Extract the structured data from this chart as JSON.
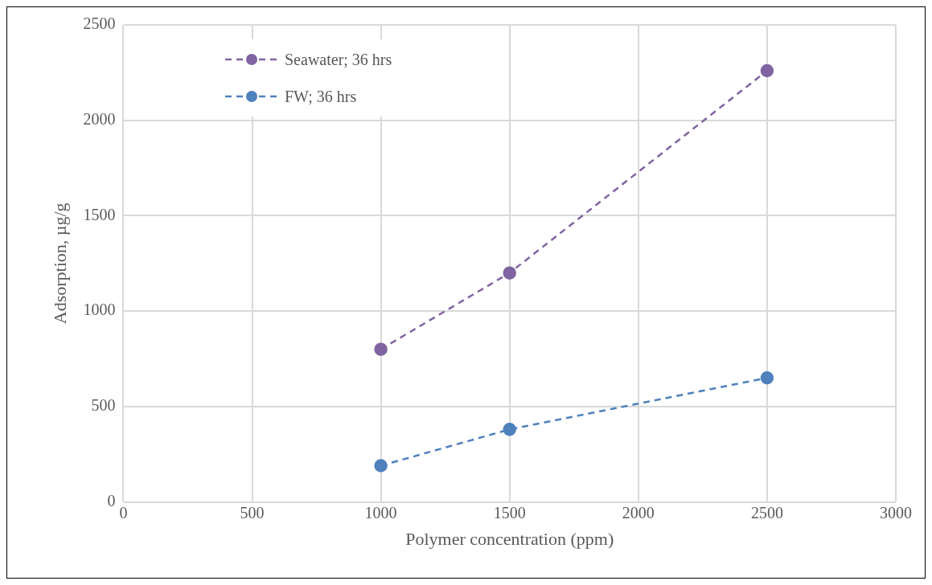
{
  "chart_data": {
    "type": "line",
    "xlabel": "Polymer concentration (ppm)",
    "ylabel": "Adsorption, µg/g",
    "x": [
      1000,
      1500,
      2500
    ],
    "series": [
      {
        "name": "Seawater; 36 hrs",
        "color": "#8064a2",
        "values": [
          800,
          1200,
          2260
        ]
      },
      {
        "name": "FW; 36 hrs",
        "color": "#4f81bd",
        "values": [
          190,
          380,
          650
        ]
      }
    ],
    "xlim": [
      0,
      3000
    ],
    "xticks": [
      0,
      500,
      1000,
      1500,
      2000,
      2500,
      3000
    ],
    "ylim": [
      0,
      2500
    ],
    "yticks": [
      0,
      500,
      1000,
      1500,
      2000,
      2500
    ],
    "grid": true,
    "legend": "top left",
    "marker": "circle",
    "line_style": "dashed"
  }
}
